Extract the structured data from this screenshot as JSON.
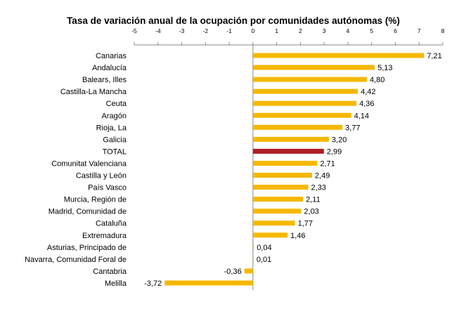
{
  "chart_data": {
    "type": "bar",
    "orientation": "horizontal",
    "title": "Tasa de variación anual de la ocupación por comunidades autónomas (%)",
    "xlim": [
      -5,
      8
    ],
    "xticks": [
      "-5",
      "-4",
      "-3",
      "-2",
      "-1",
      "0",
      "1",
      "2",
      "3",
      "4",
      "5",
      "6",
      "7",
      "8"
    ],
    "axis_position": "top",
    "grid": false,
    "colors": {
      "default": "#F5B800",
      "highlight": "#B01E23"
    },
    "highlight_category": "TOTAL",
    "categories": [
      "Canarias",
      "Andalucía",
      "Balears, Illes",
      "Castilla-La Mancha",
      "Ceuta",
      "Aragón",
      "Rioja, La",
      "Galicia",
      "TOTAL",
      "Comunitat Valenciana",
      "Castilla y León",
      "País Vasco",
      "Murcia, Región de",
      "Madrid, Comunidad de",
      "Cataluña",
      "Extremadura",
      "Asturias, Principado de",
      "Navarra, Comunidad Foral de",
      "Cantabria",
      "Melilla"
    ],
    "values": [
      7.21,
      5.13,
      4.8,
      4.42,
      4.36,
      4.14,
      3.77,
      3.2,
      2.99,
      2.71,
      2.49,
      2.33,
      2.11,
      2.03,
      1.77,
      1.46,
      0.04,
      0.01,
      -0.36,
      -3.72
    ],
    "value_labels": [
      "7,21",
      "5,13",
      "4,80",
      "4,42",
      "4,36",
      "4,14",
      "3,77",
      "3,20",
      "2,99",
      "2,71",
      "2,49",
      "2,33",
      "2,11",
      "2,03",
      "1,77",
      "1,46",
      "0,04",
      "0,01",
      "-0,36",
      "-3,72"
    ]
  }
}
